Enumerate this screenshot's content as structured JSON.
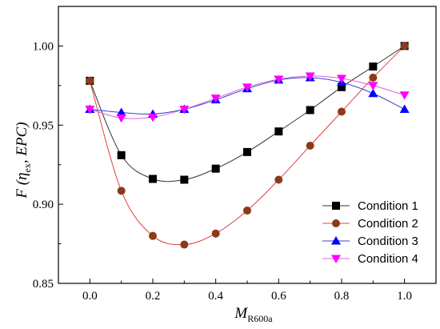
{
  "chart_data": {
    "type": "line",
    "xlabel_main": "M",
    "xlabel_sub": "R600a",
    "ylabel_pre": "F (",
    "ylabel_eta": "η",
    "ylabel_eta_sub": "ex",
    "ylabel_post": ", EPC)",
    "xlim": [
      -0.1,
      1.1
    ],
    "ylim": [
      0.85,
      1.025
    ],
    "xticks": [
      0.0,
      0.2,
      0.4,
      0.6,
      0.8,
      1.0
    ],
    "xtick_labels": [
      "0.0",
      "0.2",
      "0.4",
      "0.6",
      "0.8",
      "1.0"
    ],
    "yticks": [
      0.85,
      0.9,
      0.95,
      1.0
    ],
    "ytick_labels": [
      "0.85",
      "0.90",
      "0.95",
      "1.00"
    ],
    "legend_position": "lower-right",
    "grid": false,
    "x": [
      0.0,
      0.1,
      0.2,
      0.3,
      0.4,
      0.5,
      0.6,
      0.7,
      0.8,
      0.9,
      1.0
    ],
    "series": [
      {
        "name": "Condition 1",
        "marker": "square",
        "marker_color": "#000000",
        "line_color": "#333333",
        "values": [
          0.978,
          0.931,
          0.916,
          0.9155,
          0.9225,
          0.933,
          0.946,
          0.9595,
          0.974,
          0.987,
          1.0
        ]
      },
      {
        "name": "Condition 2",
        "marker": "circle",
        "marker_color": "#8b3a1a",
        "line_color": "#e0413a",
        "values": [
          0.978,
          0.9085,
          0.88,
          0.8745,
          0.8815,
          0.896,
          0.9155,
          0.937,
          0.9585,
          0.98,
          1.0
        ]
      },
      {
        "name": "Condition 3",
        "marker": "triangle-up",
        "marker_color": "#0000ff",
        "line_color": "#3b3bd6",
        "values": [
          0.96,
          0.958,
          0.957,
          0.96,
          0.966,
          0.973,
          0.9785,
          0.98,
          0.977,
          0.97,
          0.96
        ]
      },
      {
        "name": "Condition 4",
        "marker": "triangle-down",
        "marker_color": "#ff00ff",
        "line_color": "#e060e0",
        "values": [
          0.96,
          0.9545,
          0.955,
          0.96,
          0.967,
          0.974,
          0.979,
          0.981,
          0.9795,
          0.975,
          0.969
        ]
      }
    ]
  }
}
